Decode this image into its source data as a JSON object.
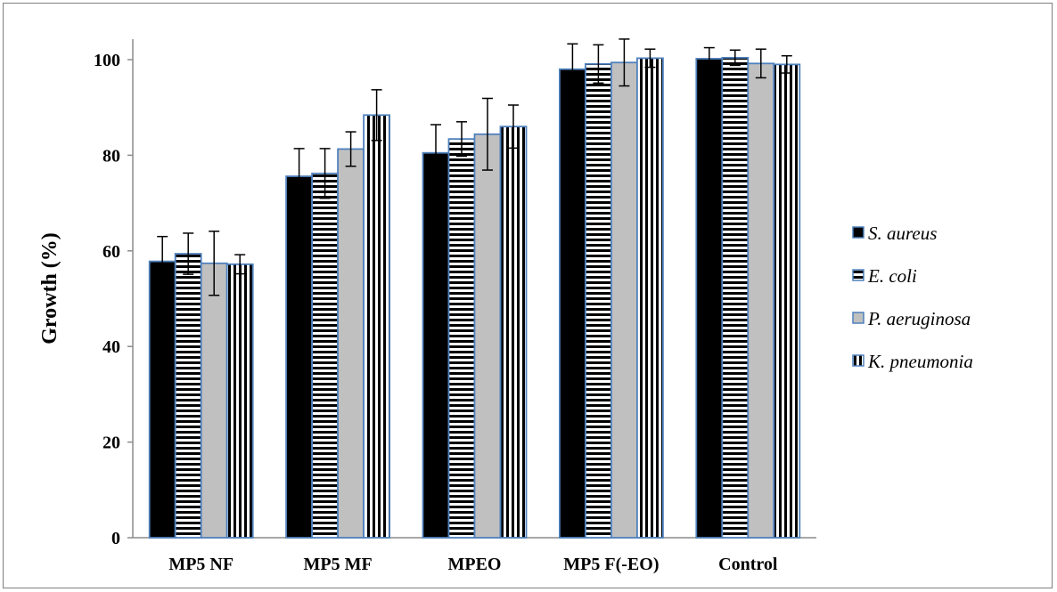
{
  "chart_data": {
    "type": "bar",
    "title": "",
    "xlabel": "",
    "ylabel": "Growth (%)",
    "ylim": [
      0,
      100
    ],
    "yticks": [
      0,
      20,
      40,
      60,
      80,
      100
    ],
    "categories": [
      "MP5 NF",
      "MP5 MF",
      "MPEO",
      "MP5 F(-EO)",
      "Control"
    ],
    "legend_position": "right",
    "grid": false,
    "series": [
      {
        "name": "S. aureus",
        "pattern": "solid",
        "color": "#000000",
        "values": [
          57.8,
          75.6,
          80.5,
          98.0,
          100.2
        ],
        "errors": [
          5.2,
          5.8,
          5.9,
          5.3,
          2.3
        ]
      },
      {
        "name": "E. coli",
        "pattern": "horizontal-stripes",
        "color": "#000000",
        "values": [
          59.4,
          76.2,
          83.4,
          99.1,
          100.4
        ],
        "errors": [
          4.3,
          5.2,
          3.6,
          4.0,
          1.6
        ]
      },
      {
        "name": "P. aeruginosa",
        "pattern": "gray",
        "color": "#c0c0c0",
        "values": [
          57.4,
          81.3,
          84.4,
          99.4,
          99.2
        ],
        "errors": [
          6.7,
          3.6,
          7.5,
          4.9,
          3.0
        ]
      },
      {
        "name": "K. pneumonia",
        "pattern": "vertical-stripes",
        "color": "#000000",
        "values": [
          57.2,
          88.4,
          86.0,
          100.3,
          99.0
        ],
        "errors": [
          2.0,
          5.3,
          4.5,
          1.9,
          1.8
        ]
      }
    ]
  }
}
